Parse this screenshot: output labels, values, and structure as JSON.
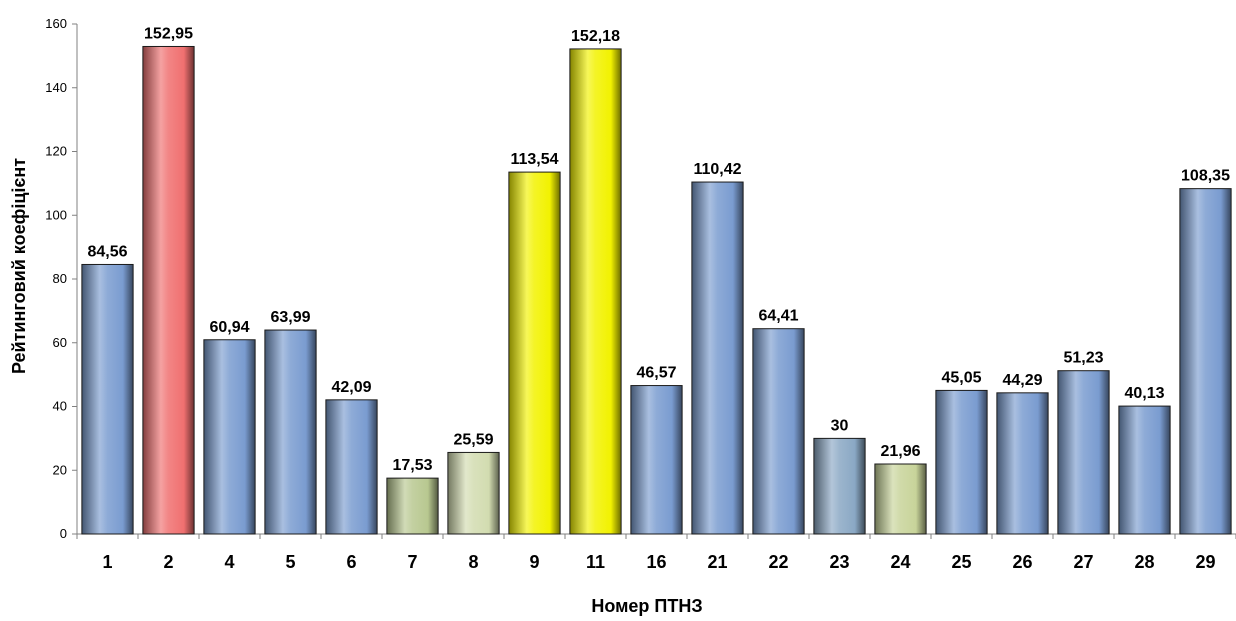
{
  "chart_data": {
    "type": "bar",
    "title": "",
    "xlabel": "Номер ПТНЗ",
    "ylabel": "Рейтинговий коефіцієнт",
    "ylim": [
      0,
      160
    ],
    "yticks": [
      0,
      20,
      40,
      60,
      80,
      100,
      120,
      140,
      160
    ],
    "grid": false,
    "legend": "none",
    "categories": [
      "1",
      "2",
      "4",
      "5",
      "6",
      "7",
      "8",
      "9",
      "11",
      "16",
      "21",
      "22",
      "23",
      "24",
      "25",
      "26",
      "27",
      "28",
      "29"
    ],
    "values": [
      84.56,
      152.95,
      60.94,
      63.99,
      42.09,
      17.53,
      25.59,
      113.54,
      152.18,
      46.57,
      110.42,
      64.41,
      30,
      21.96,
      45.05,
      44.29,
      51.23,
      40.13,
      108.35
    ],
    "value_labels": [
      "84,56",
      "152,95",
      "60,94",
      "63,99",
      "42,09",
      "17,53",
      "25,59",
      "113,54",
      "152,18",
      "46,57",
      "110,42",
      "64,41",
      "30",
      "21,96",
      "45,05",
      "44,29",
      "51,23",
      "40,13",
      "108,35"
    ],
    "bar_colors": [
      "#7a9cd0",
      "#f07070",
      "#7a9cd0",
      "#7a9cd0",
      "#7a9cd0",
      "#b8c890",
      "#d2dcb0",
      "#f2f200",
      "#f2f200",
      "#7a9cd0",
      "#7a9cd0",
      "#7a9cd0",
      "#8aa8c4",
      "#c8d49a",
      "#7a9cd0",
      "#7a9cd0",
      "#7a9cd0",
      "#7a9cd0",
      "#7a9cd0"
    ]
  }
}
